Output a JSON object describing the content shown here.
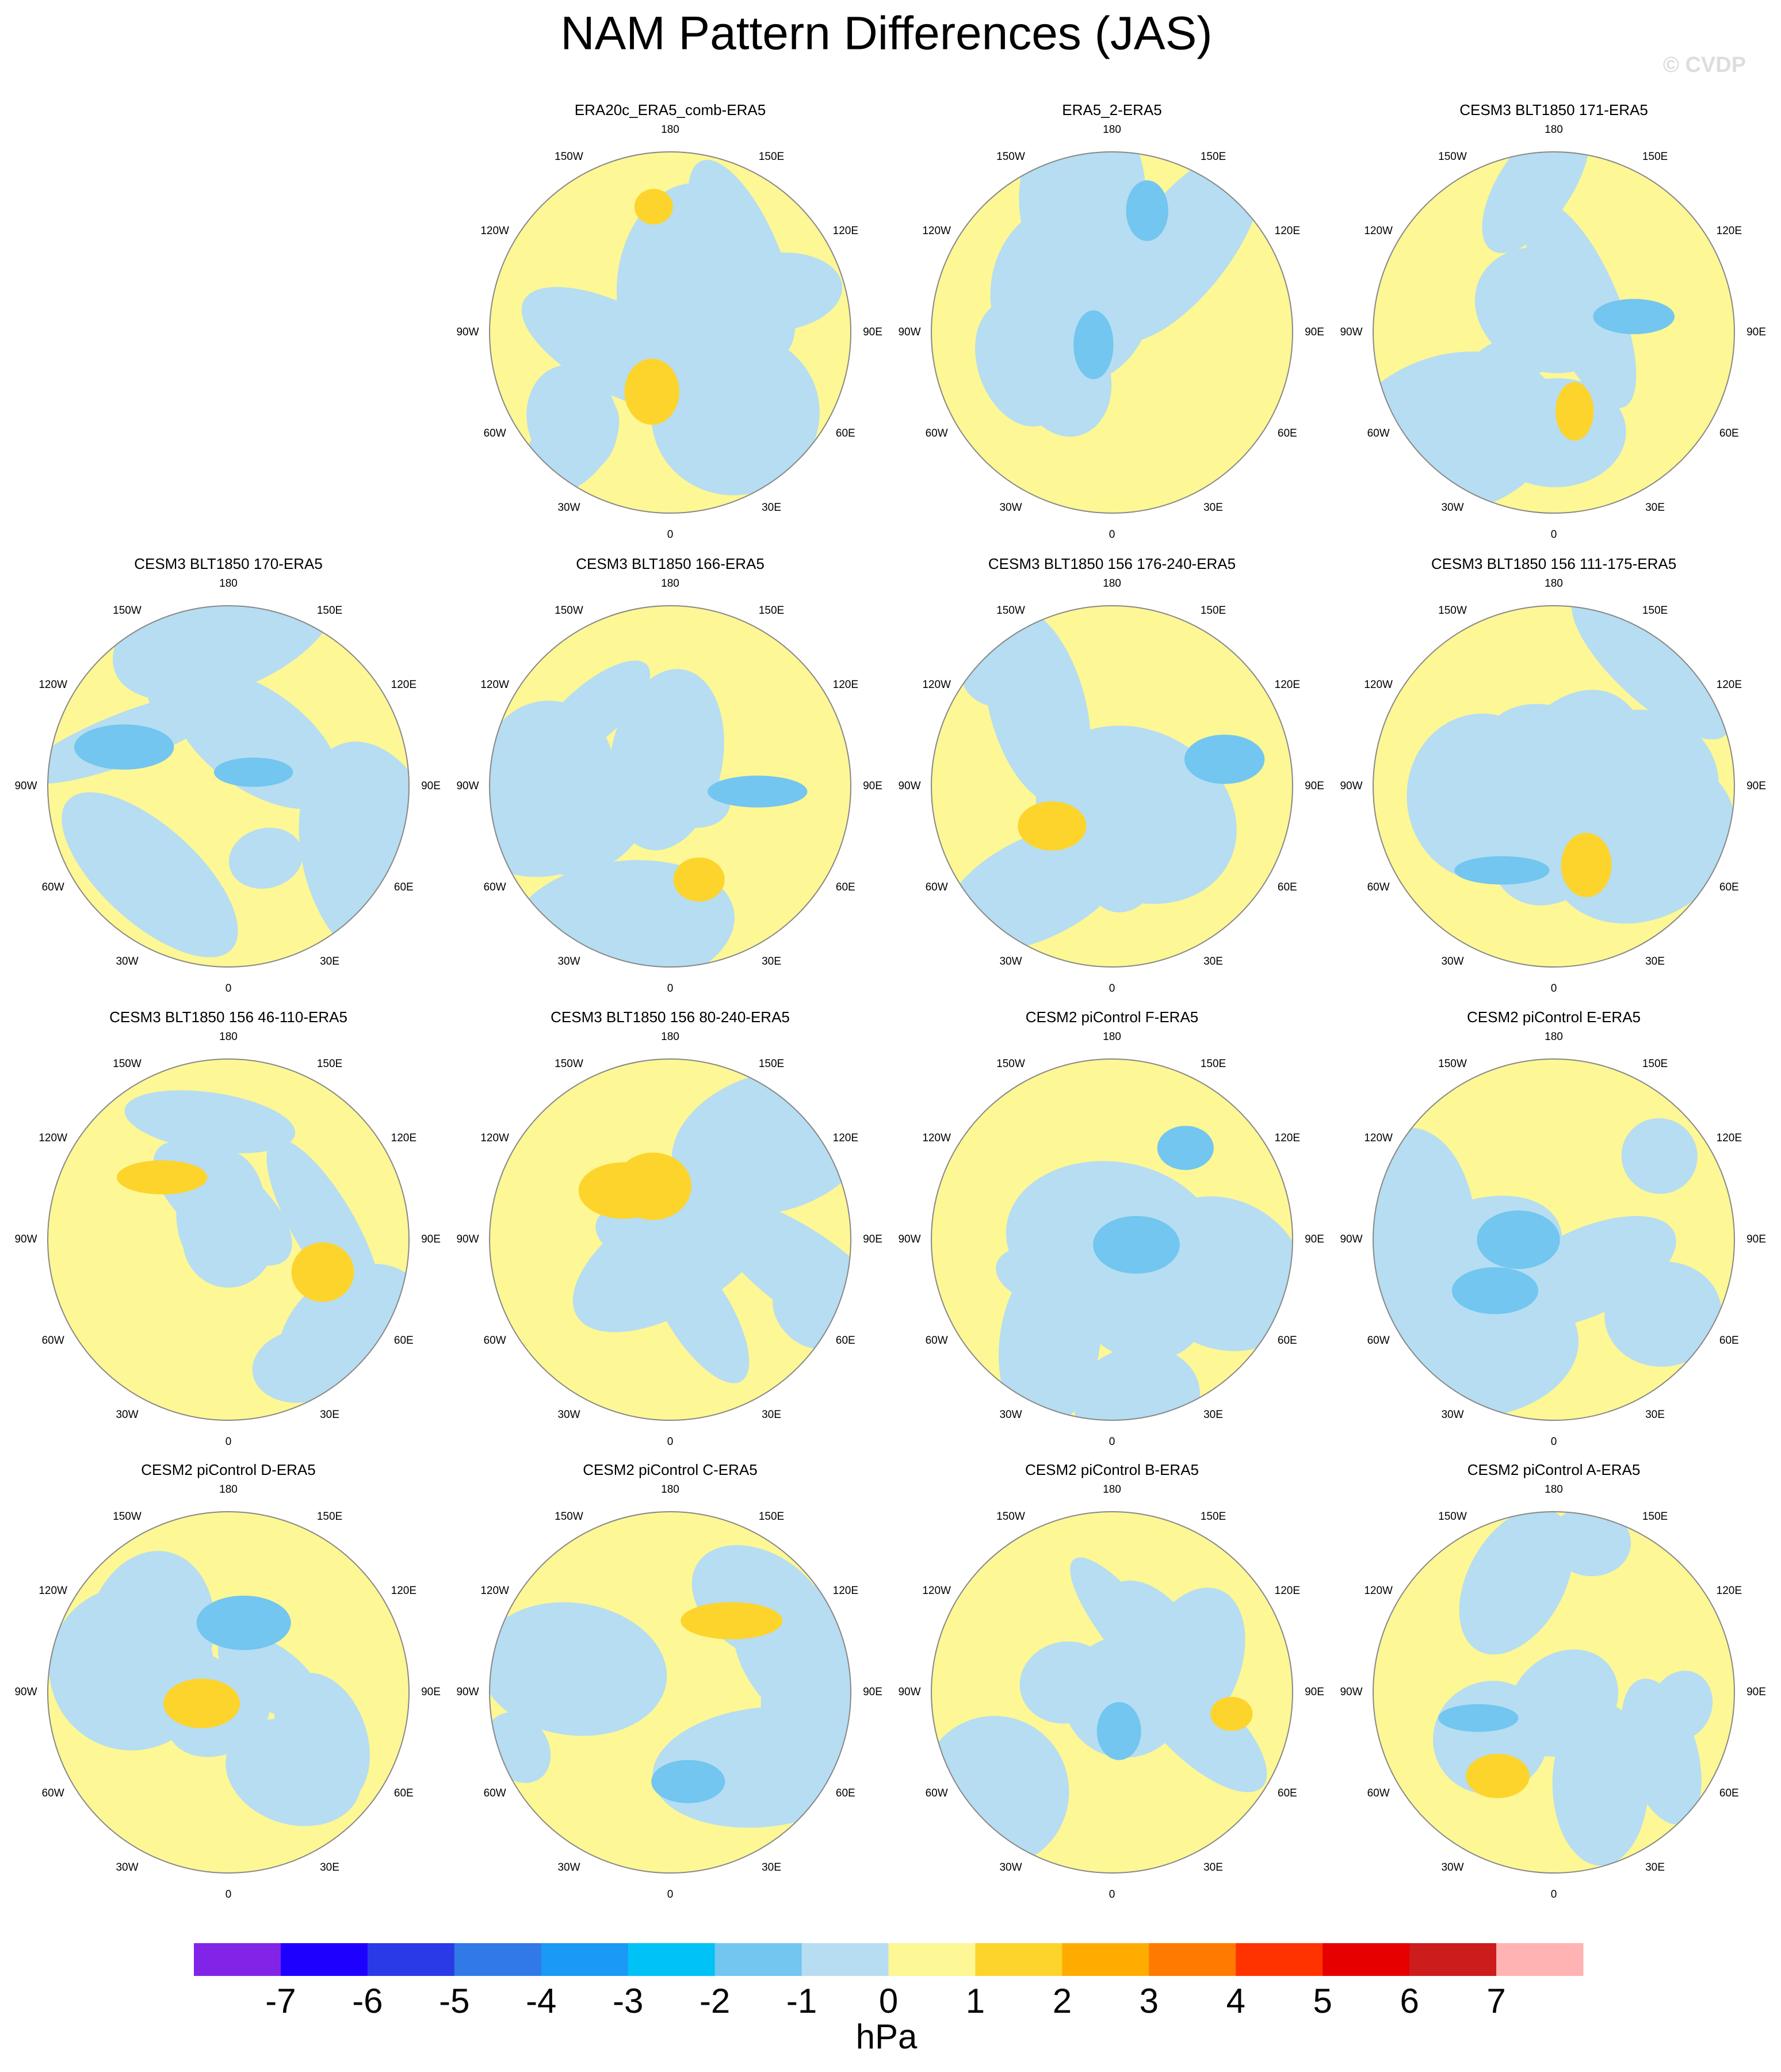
{
  "title": "NAM Pattern Differences (JAS)",
  "watermark": "© CVDP",
  "lon_labels": [
    "180",
    "150E",
    "120E",
    "90E",
    "60E",
    "30E",
    "0",
    "30W",
    "60W",
    "90W",
    "120W",
    "150W"
  ],
  "panels": [
    {
      "title": "ERA20c_ERA5_comb-ERA5"
    },
    {
      "title": "ERA5_2-ERA5"
    },
    {
      "title": "CESM3 BLT1850 171-ERA5"
    },
    {
      "title": "CESM3 BLT1850 170-ERA5"
    },
    {
      "title": "CESM3 BLT1850 166-ERA5"
    },
    {
      "title": "CESM3 BLT1850 156 176-240-ERA5"
    },
    {
      "title": "CESM3 BLT1850 156 111-175-ERA5"
    },
    {
      "title": "CESM3 BLT1850 156 46-110-ERA5"
    },
    {
      "title": "CESM3 BLT1850 156 80-240-ERA5"
    },
    {
      "title": "CESM2 piControl F-ERA5"
    },
    {
      "title": "CESM2 piControl E-ERA5"
    },
    {
      "title": "CESM2 piControl D-ERA5"
    },
    {
      "title": "CESM2 piControl C-ERA5"
    },
    {
      "title": "CESM2 piControl B-ERA5"
    },
    {
      "title": "CESM2 piControl A-ERA5"
    }
  ],
  "colorbar": {
    "levels": [
      -7,
      -6,
      -5,
      -4,
      -3,
      -2,
      -1,
      0,
      1,
      2,
      3,
      4,
      5,
      6,
      7
    ],
    "colors": [
      "#8224e8",
      "#1e00ff",
      "#2a3ae6",
      "#3279e8",
      "#1a99f5",
      "#00c2f5",
      "#72c6f0",
      "#b6ddf1",
      "#fdf795",
      "#fdd42c",
      "#ffab00",
      "#ff7a00",
      "#ff3300",
      "#e60000",
      "#cc1c1c",
      "#ffb3b3"
    ],
    "unit": "hPa"
  }
}
